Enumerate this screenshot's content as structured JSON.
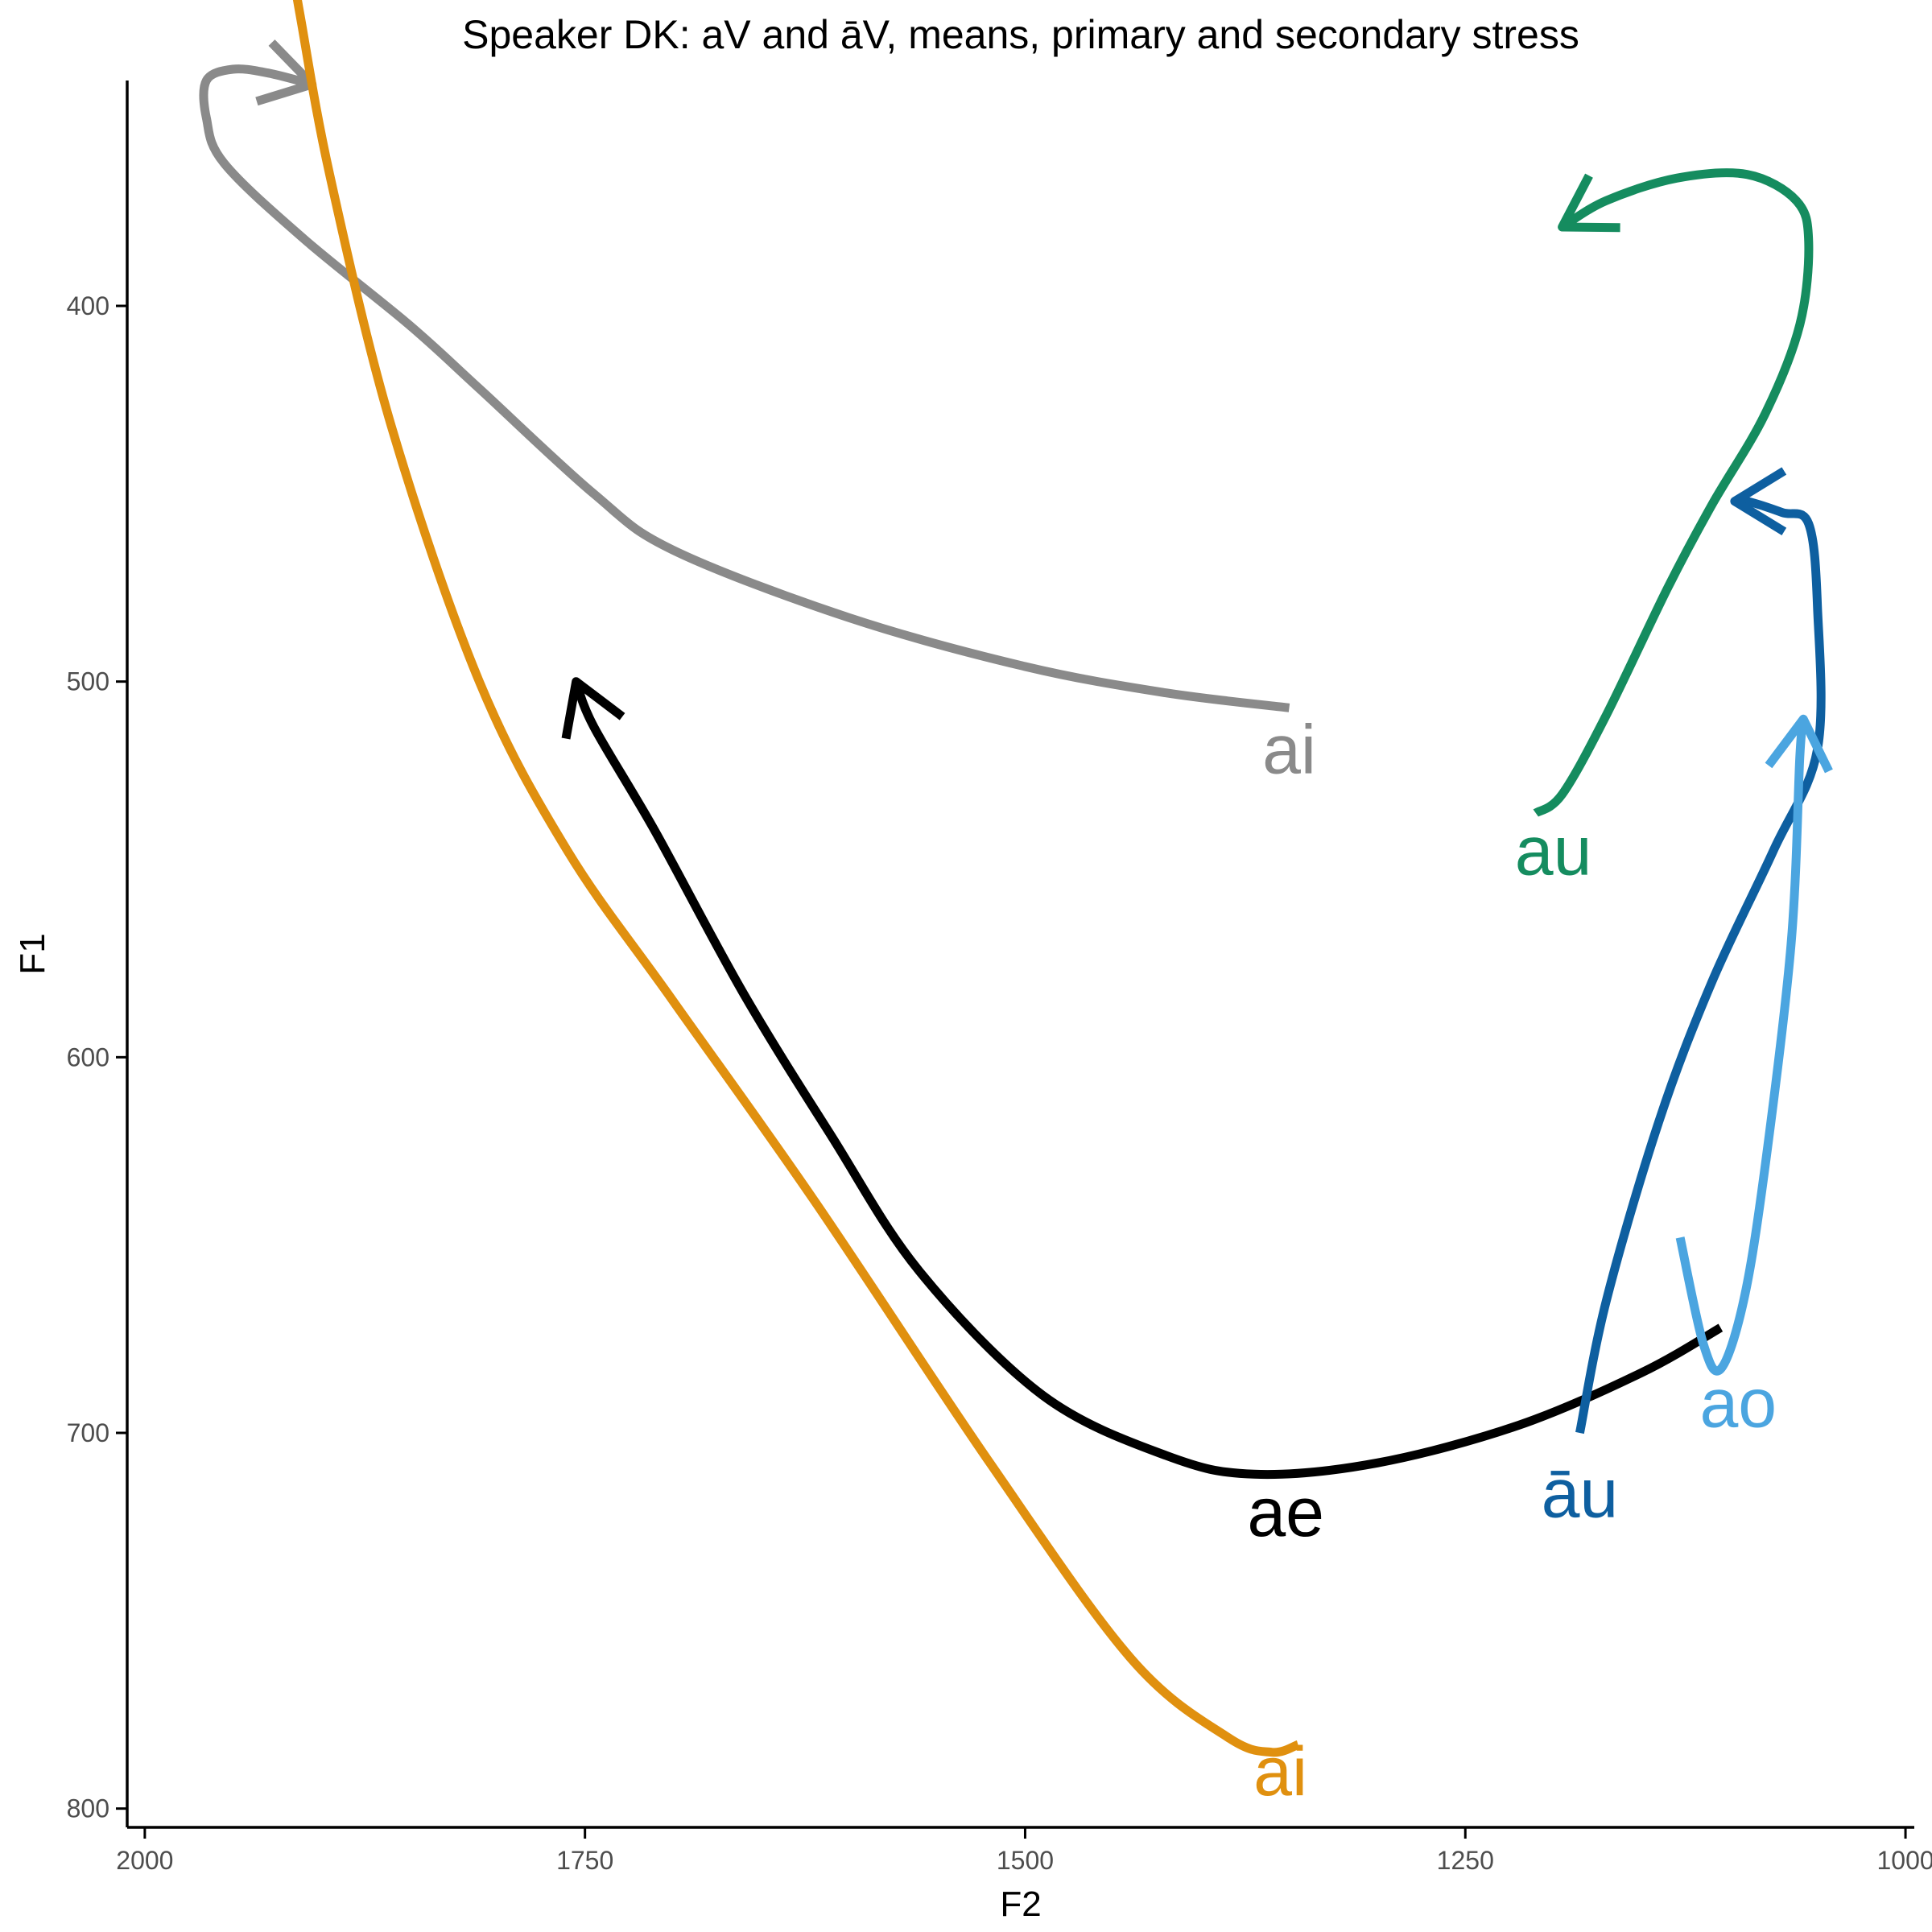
{
  "chart_data": {
    "type": "line",
    "title": "Speaker DK: aV and āV, means, primary and secondary stress",
    "xlabel": "F2",
    "ylabel": "F1",
    "x_reversed": true,
    "y_reversed": true,
    "xlim": [
      2010,
      995
    ],
    "ylim": [
      340,
      805
    ],
    "x_ticks": [
      2000,
      1750,
      1500,
      1250,
      1000
    ],
    "y_ticks": [
      400,
      500,
      600,
      700,
      800
    ],
    "grid": false,
    "legend": "none",
    "series": [
      {
        "name": "ai",
        "color": "#8a8a8a",
        "label_at": [
          1350,
          518
        ],
        "points": [
          [
            1350,
            507
          ],
          [
            1420,
            503
          ],
          [
            1500,
            496
          ],
          [
            1600,
            483
          ],
          [
            1700,
            465
          ],
          [
            1745,
            450
          ],
          [
            1810,
            422
          ],
          [
            1850,
            405
          ],
          [
            1910,
            382
          ],
          [
            1955,
            362
          ],
          [
            1965,
            350
          ],
          [
            1965,
            340
          ],
          [
            1950,
            337
          ],
          [
            1930,
            338
          ],
          [
            1905,
            341
          ]
        ]
      },
      {
        "name": "āi",
        "color": "#e0900f",
        "label_at": [
          1355,
          790
        ],
        "points": [
          [
            1345,
            783
          ],
          [
            1360,
            785
          ],
          [
            1385,
            781
          ],
          [
            1440,
            760
          ],
          [
            1520,
            708
          ],
          [
            1620,
            638
          ],
          [
            1700,
            585
          ],
          [
            1760,
            545
          ],
          [
            1810,
            500
          ],
          [
            1860,
            432
          ],
          [
            1895,
            365
          ],
          [
            1912,
            322
          ],
          [
            1920,
            300
          ],
          [
            1930,
            280
          ]
        ]
      },
      {
        "name": "ae",
        "color": "#000000",
        "label_at": [
          1352,
          721
        ],
        "points": [
          [
            1105,
            672
          ],
          [
            1150,
            684
          ],
          [
            1220,
            698
          ],
          [
            1300,
            708
          ],
          [
            1370,
            711
          ],
          [
            1420,
            706
          ],
          [
            1490,
            690
          ],
          [
            1560,
            657
          ],
          [
            1610,
            621
          ],
          [
            1660,
            583
          ],
          [
            1710,
            540
          ],
          [
            1745,
            512
          ],
          [
            1755,
            500
          ]
        ]
      },
      {
        "name": "au",
        "color": "#158c5f",
        "label_at": [
          1200,
          545
        ],
        "points": [
          [
            1210,
            535
          ],
          [
            1195,
            530
          ],
          [
            1170,
            509
          ],
          [
            1135,
            475
          ],
          [
            1110,
            453
          ],
          [
            1080,
            429
          ],
          [
            1060,
            405
          ],
          [
            1055,
            383
          ],
          [
            1062,
            372
          ],
          [
            1090,
            365
          ],
          [
            1130,
            366
          ],
          [
            1170,
            372
          ],
          [
            1195,
            379
          ]
        ]
      },
      {
        "name": "āu",
        "color": "#0e5fa0",
        "label_at": [
          1185,
          716
        ],
        "points": [
          [
            1185,
            700
          ],
          [
            1170,
            665
          ],
          [
            1140,
            617
          ],
          [
            1110,
            580
          ],
          [
            1075,
            545
          ],
          [
            1050,
            518
          ],
          [
            1050,
            480
          ],
          [
            1055,
            458
          ],
          [
            1070,
            455
          ],
          [
            1090,
            452
          ],
          [
            1097,
            452
          ]
        ]
      },
      {
        "name": "ao",
        "color": "#4ba5e0",
        "label_at": [
          1095,
          692
        ],
        "points": [
          [
            1128,
            648
          ],
          [
            1115,
            676
          ],
          [
            1105,
            683
          ],
          [
            1092,
            665
          ],
          [
            1080,
            630
          ],
          [
            1065,
            570
          ],
          [
            1060,
            520
          ],
          [
            1058,
            510
          ]
        ]
      }
    ]
  }
}
